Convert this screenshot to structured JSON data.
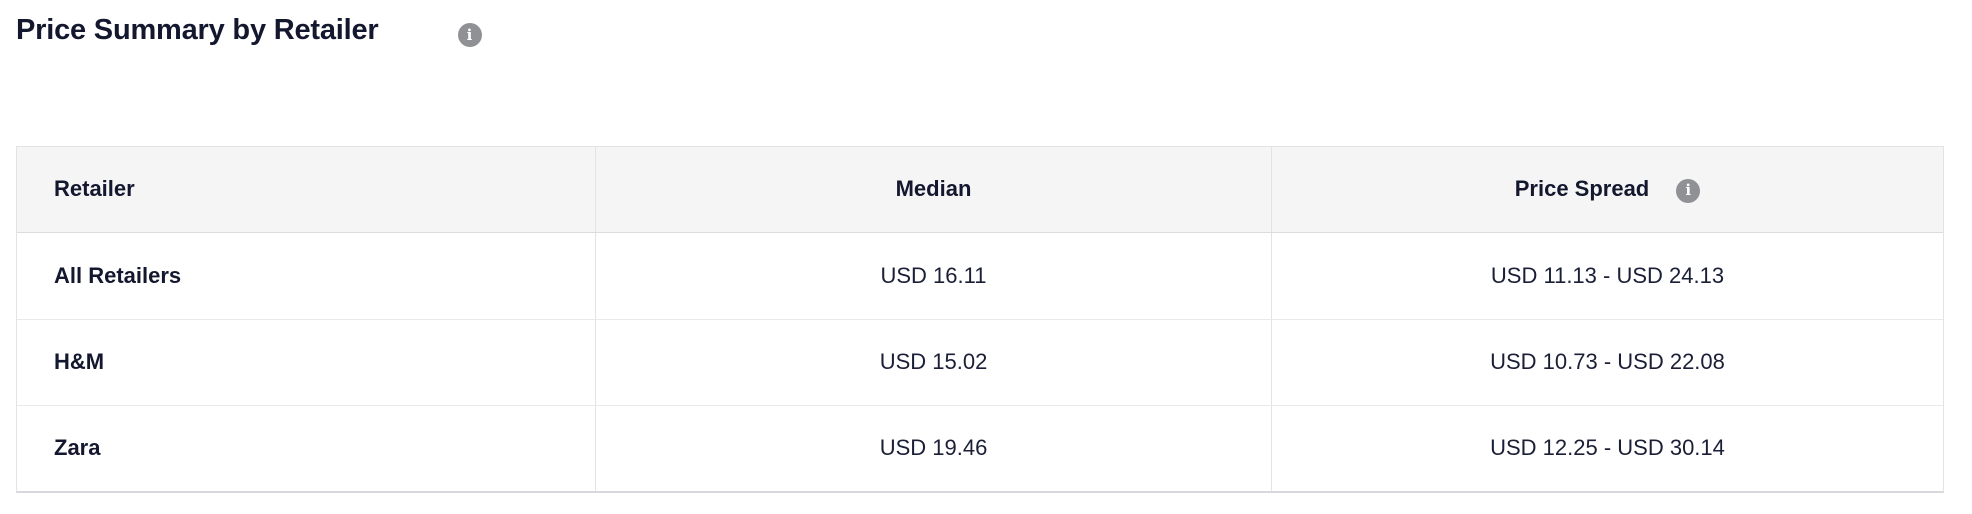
{
  "page": {
    "title": "Price Summary by Retailer"
  },
  "icons": {
    "info_glyph": "i"
  },
  "colors": {
    "text_dark": "#14182e",
    "header_bg": "#f5f5f6",
    "border": "#e3e3e6",
    "info_icon_bg": "#909195"
  },
  "table": {
    "columns": [
      {
        "label": "Retailer"
      },
      {
        "label": "Median"
      },
      {
        "label": "Price Spread"
      }
    ],
    "rows": [
      {
        "retailer": "All Retailers",
        "median": "USD 16.11",
        "price_spread": "USD 11.13 - USD 24.13"
      },
      {
        "retailer": "H&M",
        "median": "USD 15.02",
        "price_spread": "USD 10.73 - USD 22.08"
      },
      {
        "retailer": "Zara",
        "median": "USD 19.46",
        "price_spread": "USD 12.25 - USD 30.14"
      }
    ]
  }
}
